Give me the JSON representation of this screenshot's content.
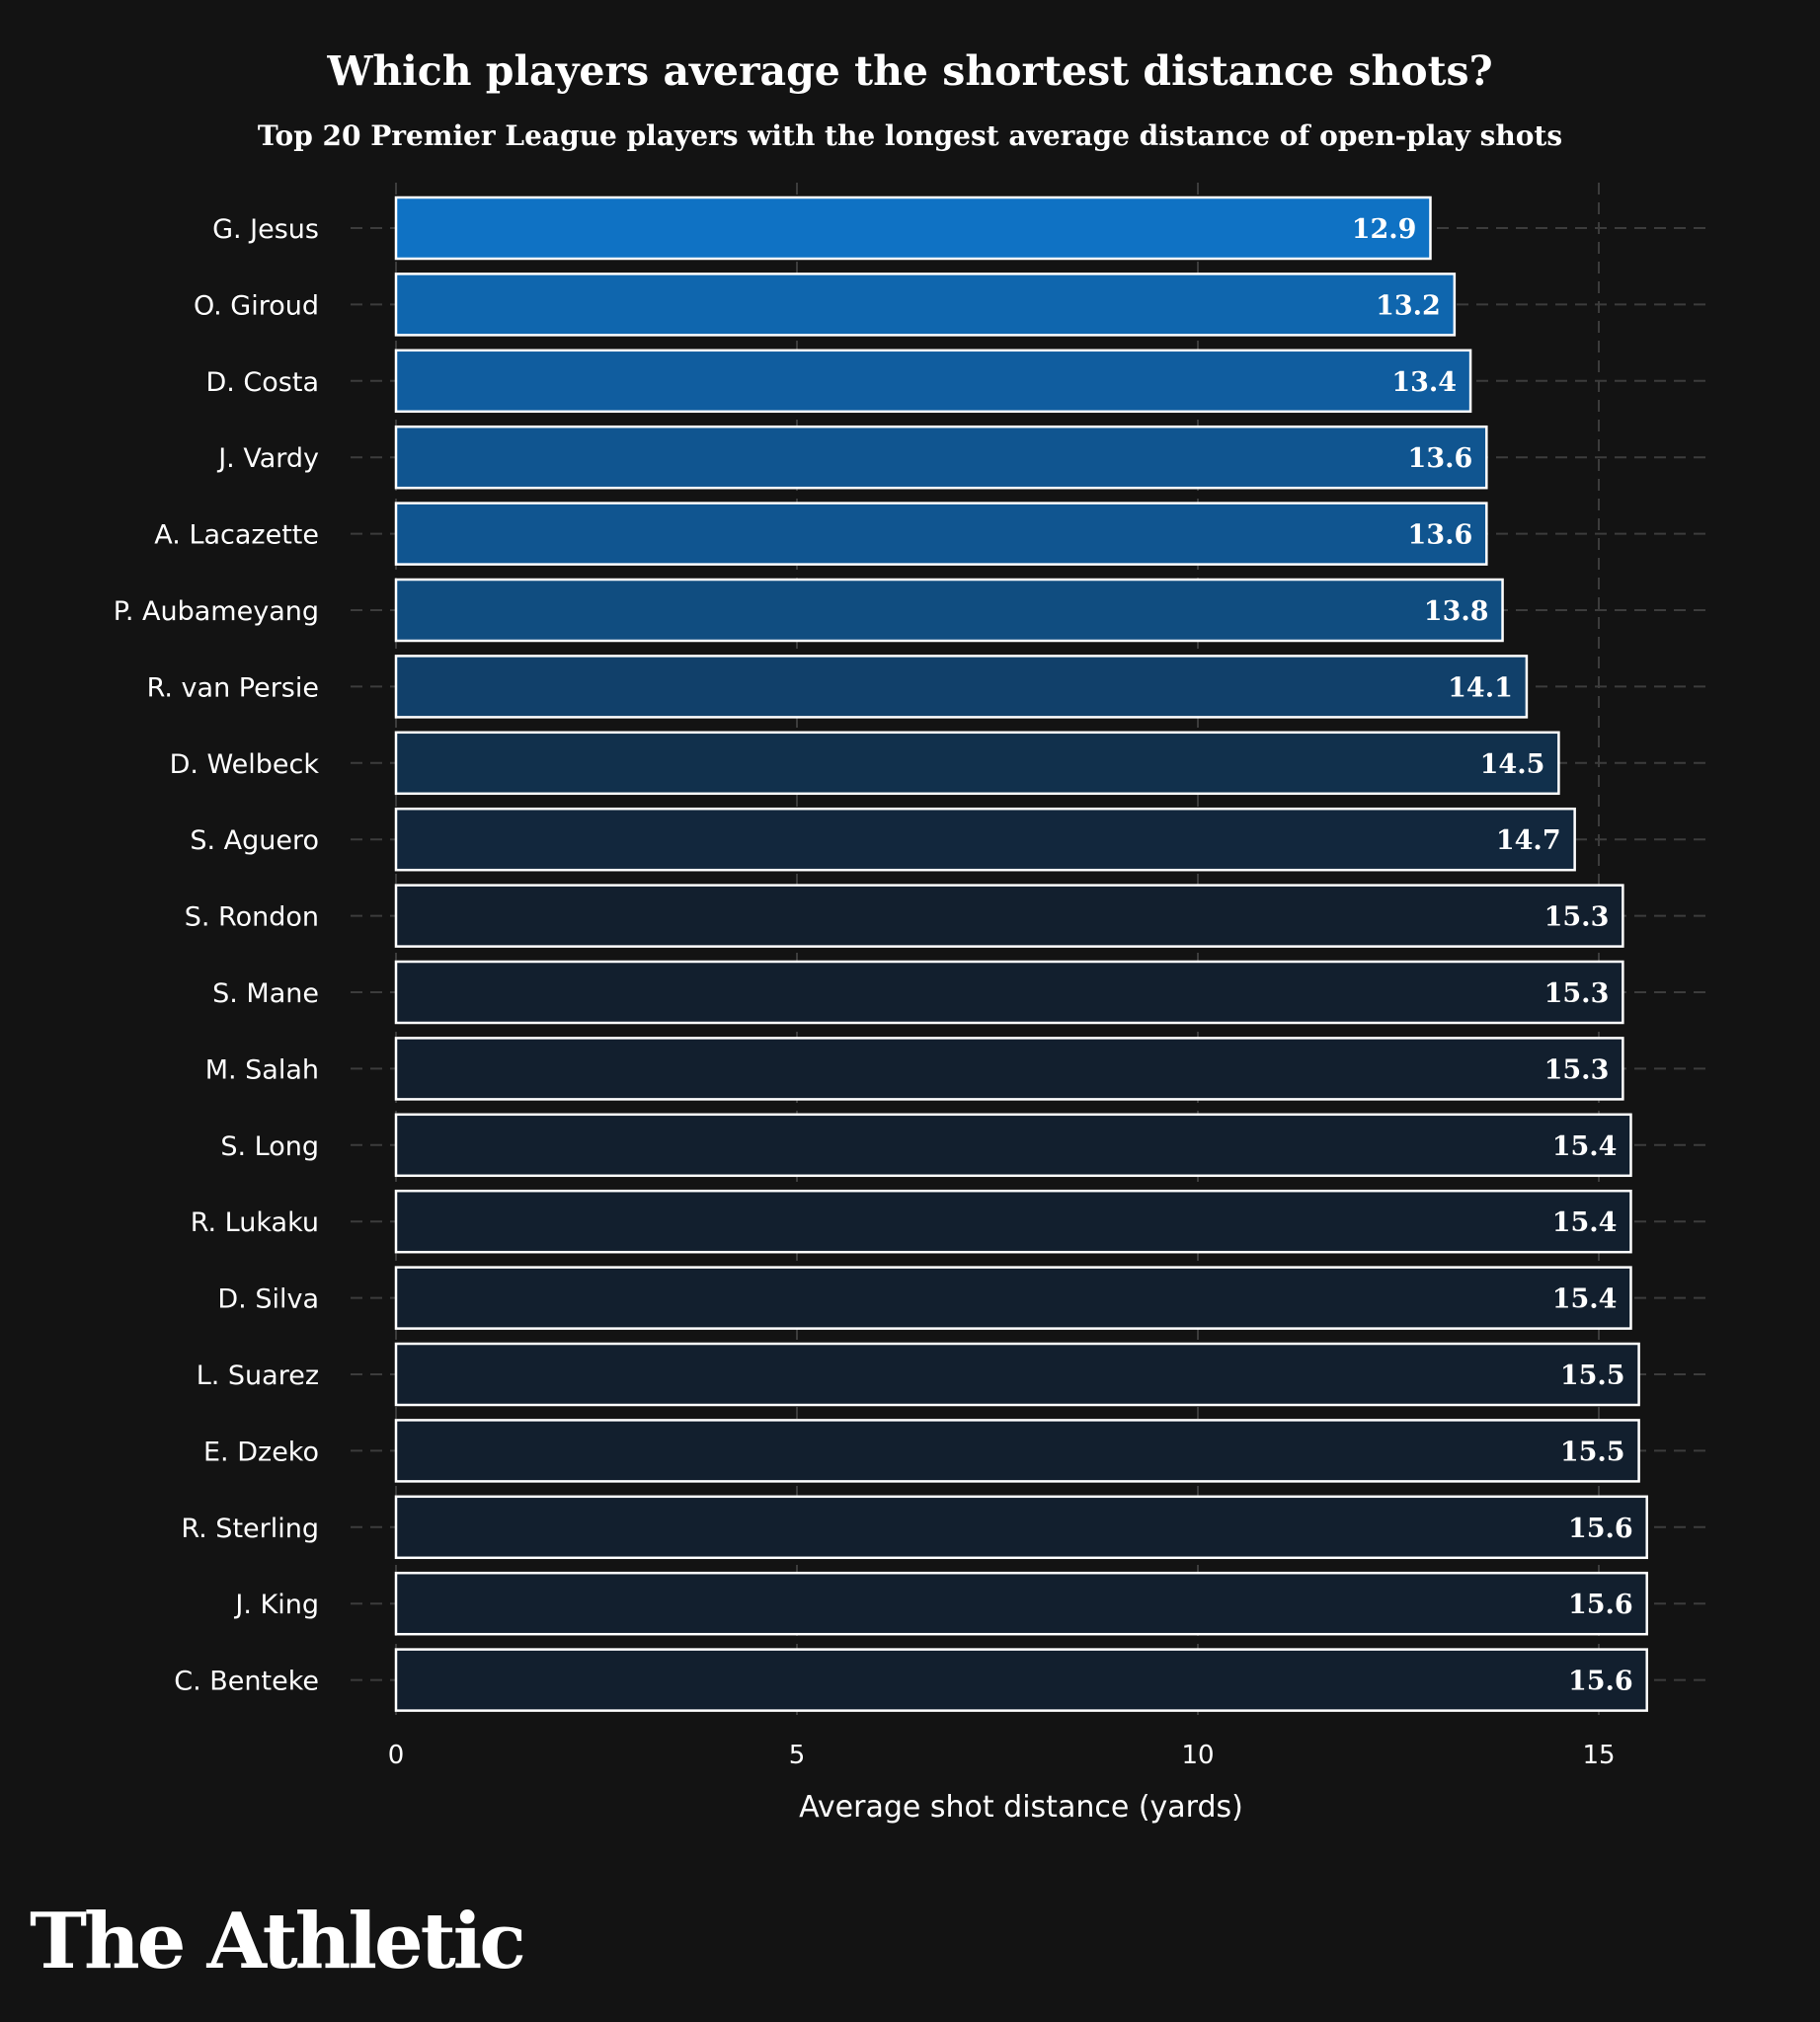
{
  "chart_data": {
    "type": "bar",
    "orientation": "horizontal",
    "title": "Which players average the shortest distance shots?",
    "subtitle": "Top 20 Premier League players with the longest average distance of open-play shots",
    "xlabel": "Average shot distance (yards)",
    "ylabel": "",
    "xlim": [
      0,
      16.5
    ],
    "xticks": [
      0,
      5,
      10,
      15
    ],
    "grid": true,
    "categories": [
      "G. Jesus",
      "O. Giroud",
      "D. Costa",
      "J. Vardy",
      "A. Lacazette",
      "P. Aubameyang",
      "R. van Persie",
      "D. Welbeck",
      "S. Aguero",
      "S. Rondon",
      "S. Mane",
      "M. Salah",
      "S. Long",
      "R. Lukaku",
      "D. Silva",
      "L. Suarez",
      "E. Dzeko",
      "R. Sterling",
      "J. King",
      "C. Benteke"
    ],
    "values": [
      12.9,
      13.2,
      13.4,
      13.6,
      13.6,
      13.8,
      14.1,
      14.5,
      14.7,
      15.3,
      15.3,
      15.3,
      15.4,
      15.4,
      15.4,
      15.5,
      15.5,
      15.6,
      15.6,
      15.6
    ],
    "data_labels": [
      "12.9",
      "13.2",
      "13.4",
      "13.6",
      "13.6",
      "13.8",
      "14.1",
      "14.5",
      "14.7",
      "15.3",
      "15.3",
      "15.3",
      "15.4",
      "15.4",
      "15.4",
      "15.5",
      "15.5",
      "15.6",
      "15.6",
      "15.6"
    ],
    "colors": {
      "low": "#0f72c4",
      "high": "#121f2e",
      "bar_border": "#ffffff",
      "grid": "#3c3c3c",
      "background": "#131313",
      "text": "#ffffff"
    }
  },
  "branding": {
    "logo_text": "The Athletic"
  }
}
